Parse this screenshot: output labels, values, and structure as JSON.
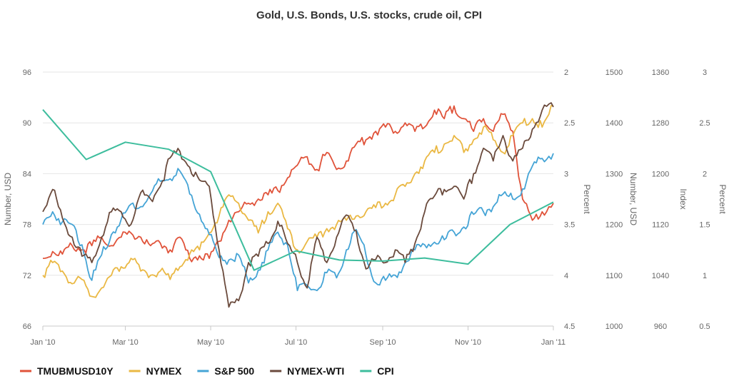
{
  "chart_data": {
    "type": "line",
    "title": "Gold, U.S. Bonds, U.S. stocks, crude oil, CPI",
    "x_tick_labels": [
      "Jan '10",
      "Mar '10",
      "May '10",
      "Jul '10",
      "Sep '10",
      "Nov '10",
      "Jan '11"
    ],
    "x_tick_positions_days": [
      0,
      59,
      120,
      181,
      243,
      304,
      365
    ],
    "axes": [
      {
        "id": "number_usd_left",
        "side": "left",
        "title": "Number, USD",
        "min": 66,
        "max": 96,
        "reversed": false,
        "ticks": [
          "96",
          "90",
          "84",
          "78",
          "72",
          "66"
        ],
        "tick_values": [
          96,
          90,
          84,
          78,
          72,
          66
        ]
      },
      {
        "id": "percent_bonds",
        "side": "right",
        "title": "Percent",
        "min": 2,
        "max": 4.5,
        "reversed": true,
        "ticks": [
          "2",
          "2.5",
          "3",
          "3.5",
          "4",
          "4.5"
        ],
        "tick_values": [
          2,
          2.5,
          3,
          3.5,
          4,
          4.5
        ]
      },
      {
        "id": "number_usd_right",
        "side": "right",
        "title": "Number, USD",
        "min": 1000,
        "max": 1500,
        "reversed": false,
        "ticks": [
          "1500",
          "1400",
          "1300",
          "1200",
          "1100",
          "1000"
        ],
        "tick_values": [
          1500,
          1400,
          1300,
          1200,
          1100,
          1000
        ]
      },
      {
        "id": "index",
        "side": "right",
        "title": "Index",
        "min": 960,
        "max": 1360,
        "reversed": false,
        "ticks": [
          "1360",
          "1280",
          "1200",
          "1120",
          "1040",
          "960"
        ],
        "tick_values": [
          1360,
          1280,
          1200,
          1120,
          1040,
          960
        ]
      },
      {
        "id": "percent_cpi",
        "side": "right",
        "title": "Percent",
        "min": 0.5,
        "max": 3,
        "reversed": false,
        "ticks": [
          "3",
          "2.5",
          "2",
          "1.5",
          "1",
          "0.5"
        ],
        "tick_values": [
          3,
          2.5,
          2,
          1.5,
          1,
          0.5
        ]
      }
    ],
    "series": [
      {
        "name": "TMUBMUSD10Y",
        "color": "#e0533a",
        "axis": "number_usd_left",
        "days": [
          0,
          7,
          14,
          21,
          28,
          35,
          42,
          49,
          56,
          63,
          70,
          77,
          84,
          91,
          98,
          105,
          112,
          119,
          126,
          133,
          140,
          147,
          154,
          161,
          168,
          175,
          182,
          189,
          196,
          203,
          210,
          217,
          224,
          231,
          238,
          245,
          252,
          259,
          266,
          273,
          280,
          287,
          294,
          301,
          308,
          315,
          322,
          329,
          336,
          343,
          350,
          357,
          365
        ],
        "values": [
          74.0,
          74.8,
          74.5,
          75.5,
          75.0,
          75.5,
          76.5,
          75.5,
          76.5,
          77.0,
          76.5,
          75.5,
          75.8,
          75.0,
          76.5,
          74.0,
          74.3,
          74.0,
          76.0,
          78.5,
          79.5,
          80.5,
          81.0,
          81.5,
          82.0,
          83.5,
          85.0,
          86.0,
          84.5,
          86.5,
          84.5,
          85.5,
          87.5,
          88.0,
          89.0,
          89.5,
          89.0,
          90.0,
          89.0,
          89.5,
          91.5,
          90.5,
          92.0,
          90.5,
          89.0,
          90.5,
          89.0,
          91.0,
          89.0,
          81.0,
          78.5,
          79.5,
          80.5
        ]
      },
      {
        "name": "NYMEX",
        "color": "#eab843",
        "axis": "number_usd_left",
        "days": [
          0,
          7,
          14,
          21,
          28,
          35,
          42,
          49,
          56,
          63,
          70,
          77,
          84,
          91,
          98,
          105,
          112,
          119,
          126,
          133,
          140,
          147,
          154,
          161,
          168,
          175,
          182,
          189,
          196,
          203,
          210,
          217,
          224,
          231,
          238,
          245,
          252,
          259,
          266,
          273,
          280,
          287,
          294,
          301,
          308,
          315,
          322,
          329,
          336,
          343,
          350,
          357,
          365
        ],
        "values": [
          72.0,
          73.5,
          72.5,
          71.0,
          71.5,
          69.5,
          70.5,
          72.0,
          73.0,
          74.0,
          72.5,
          72.0,
          72.5,
          71.5,
          73.0,
          74.5,
          75.0,
          77.0,
          79.0,
          81.5,
          80.5,
          78.5,
          77.0,
          79.5,
          80.5,
          77.5,
          75.0,
          76.0,
          76.5,
          77.5,
          78.0,
          78.5,
          79.0,
          79.5,
          80.0,
          80.5,
          81.5,
          82.5,
          84.0,
          85.5,
          86.5,
          87.5,
          88.5,
          86.5,
          88.0,
          89.5,
          88.0,
          86.5,
          88.5,
          90.0,
          90.5,
          89.5,
          92.0
        ]
      },
      {
        "name": "S&P 500",
        "color": "#45a4d6",
        "axis": "number_usd_right",
        "days": [
          0,
          7,
          14,
          21,
          28,
          35,
          42,
          49,
          56,
          63,
          70,
          77,
          84,
          91,
          98,
          105,
          112,
          119,
          126,
          133,
          140,
          147,
          154,
          161,
          168,
          175,
          182,
          189,
          196,
          203,
          210,
          217,
          224,
          231,
          238,
          245,
          252,
          259,
          266,
          273,
          280,
          287,
          294,
          301,
          308,
          315,
          322,
          329,
          336,
          343,
          350,
          357,
          365
        ],
        "values": [
          1200,
          1225,
          1205,
          1200,
          1160,
          1090,
          1140,
          1180,
          1210,
          1240,
          1235,
          1260,
          1285,
          1290,
          1305,
          1260,
          1220,
          1180,
          1135,
          1130,
          1140,
          1085,
          1110,
          1150,
          1185,
          1160,
          1070,
          1080,
          1070,
          1105,
          1095,
          1150,
          1190,
          1140,
          1085,
          1090,
          1100,
          1125,
          1150,
          1160,
          1165,
          1170,
          1185,
          1195,
          1220,
          1225,
          1235,
          1260,
          1250,
          1270,
          1315,
          1330,
          1340
        ]
      },
      {
        "name": "NYMEX-WTI",
        "color": "#6a4a3c",
        "axis": "index",
        "days": [
          0,
          7,
          14,
          21,
          28,
          35,
          42,
          49,
          56,
          63,
          70,
          77,
          84,
          91,
          98,
          105,
          112,
          119,
          126,
          133,
          140,
          147,
          154,
          161,
          168,
          175,
          182,
          189,
          196,
          203,
          210,
          217,
          224,
          231,
          238,
          245,
          252,
          259,
          266,
          273,
          280,
          287,
          294,
          301,
          308,
          315,
          322,
          329,
          336,
          343,
          350,
          357,
          365
        ],
        "values": [
          1140,
          1175,
          1130,
          1100,
          1070,
          1060,
          1100,
          1140,
          1140,
          1120,
          1170,
          1160,
          1180,
          1225,
          1235,
          1210,
          1190,
          1180,
          1080,
          990,
          1000,
          1060,
          1070,
          1090,
          1125,
          1090,
          1060,
          1020,
          1100,
          1060,
          1100,
          1135,
          1110,
          1050,
          1065,
          1060,
          1080,
          1060,
          1090,
          1140,
          1165,
          1175,
          1180,
          1160,
          1200,
          1240,
          1220,
          1260,
          1220,
          1240,
          1270,
          1300,
          1305
        ]
      },
      {
        "name": "CPI",
        "color": "#3dbd9d",
        "axis": "percent_cpi",
        "days": [
          0,
          31,
          59,
          90,
          120,
          151,
          181,
          212,
          243,
          273,
          304,
          334,
          365
        ],
        "values": [
          2.63,
          2.14,
          2.31,
          2.24,
          2.02,
          1.05,
          1.24,
          1.15,
          1.14,
          1.17,
          1.11,
          1.5,
          1.72
        ]
      }
    ],
    "legend_position": "bottom-left",
    "grid": "horizontal"
  }
}
